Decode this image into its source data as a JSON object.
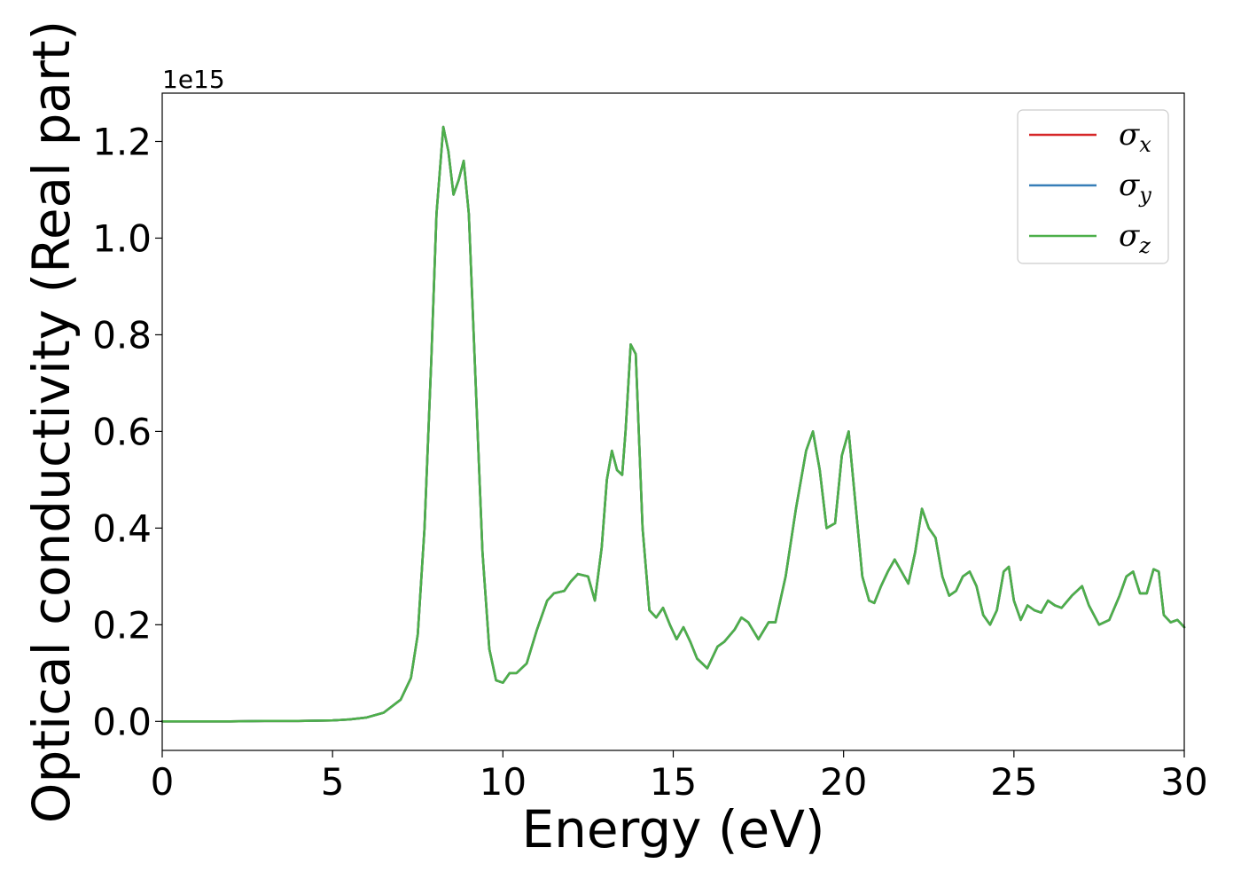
{
  "chart_data": {
    "type": "line",
    "title": "",
    "xlabel": "Energy (eV)",
    "ylabel": "Optical conductivity (Real part)",
    "y_offset_text": "1e15",
    "xlim": [
      0,
      30
    ],
    "ylim": [
      -0.06,
      1.3
    ],
    "xticks": [
      {
        "value": 0,
        "label": "0"
      },
      {
        "value": 5,
        "label": "5"
      },
      {
        "value": 10,
        "label": "10"
      },
      {
        "value": 15,
        "label": "15"
      },
      {
        "value": 20,
        "label": "20"
      },
      {
        "value": 25,
        "label": "25"
      },
      {
        "value": 30,
        "label": "30"
      }
    ],
    "yticks": [
      {
        "value": 0.0,
        "label": "0.0"
      },
      {
        "value": 0.2,
        "label": "0.2"
      },
      {
        "value": 0.4,
        "label": "0.4"
      },
      {
        "value": 0.6,
        "label": "0.6"
      },
      {
        "value": 0.8,
        "label": "0.8"
      },
      {
        "value": 1.0,
        "label": "1.0"
      },
      {
        "value": 1.2,
        "label": "1.2"
      }
    ],
    "grid": false,
    "legend_position": "top-right",
    "x": [
      0,
      1,
      2,
      3,
      4,
      5,
      5.5,
      6,
      6.5,
      7,
      7.3,
      7.5,
      7.7,
      7.9,
      8.05,
      8.25,
      8.4,
      8.55,
      8.7,
      8.85,
      9.0,
      9.2,
      9.4,
      9.6,
      9.8,
      10.0,
      10.2,
      10.4,
      10.7,
      11.0,
      11.3,
      11.5,
      11.8,
      12.0,
      12.2,
      12.5,
      12.7,
      12.9,
      13.05,
      13.2,
      13.35,
      13.5,
      13.6,
      13.75,
      13.9,
      14.1,
      14.3,
      14.5,
      14.7,
      14.9,
      15.1,
      15.3,
      15.5,
      15.7,
      16.0,
      16.3,
      16.5,
      16.8,
      17.0,
      17.2,
      17.5,
      17.8,
      18.0,
      18.3,
      18.6,
      18.9,
      19.1,
      19.3,
      19.5,
      19.75,
      19.95,
      20.15,
      20.35,
      20.55,
      20.75,
      20.9,
      21.1,
      21.3,
      21.5,
      21.7,
      21.9,
      22.1,
      22.3,
      22.5,
      22.7,
      22.9,
      23.1,
      23.3,
      23.5,
      23.7,
      23.9,
      24.1,
      24.3,
      24.5,
      24.7,
      24.85,
      25.0,
      25.2,
      25.4,
      25.6,
      25.8,
      26.0,
      26.2,
      26.4,
      26.7,
      27.0,
      27.2,
      27.5,
      27.8,
      28.1,
      28.3,
      28.5,
      28.7,
      28.9,
      29.1,
      29.25,
      29.4,
      29.6,
      29.8,
      30.0
    ],
    "y": [
      0.0,
      0.0,
      0.0,
      0.001,
      0.001,
      0.002,
      0.004,
      0.008,
      0.018,
      0.045,
      0.09,
      0.18,
      0.4,
      0.75,
      1.05,
      1.23,
      1.18,
      1.09,
      1.12,
      1.16,
      1.05,
      0.7,
      0.35,
      0.15,
      0.085,
      0.08,
      0.1,
      0.1,
      0.12,
      0.19,
      0.25,
      0.265,
      0.27,
      0.29,
      0.305,
      0.3,
      0.25,
      0.36,
      0.5,
      0.56,
      0.52,
      0.51,
      0.6,
      0.78,
      0.76,
      0.4,
      0.23,
      0.215,
      0.235,
      0.2,
      0.17,
      0.195,
      0.165,
      0.13,
      0.11,
      0.155,
      0.165,
      0.19,
      0.215,
      0.205,
      0.17,
      0.205,
      0.205,
      0.3,
      0.44,
      0.56,
      0.6,
      0.52,
      0.4,
      0.41,
      0.55,
      0.6,
      0.45,
      0.3,
      0.25,
      0.245,
      0.28,
      0.31,
      0.335,
      0.31,
      0.285,
      0.35,
      0.44,
      0.4,
      0.38,
      0.3,
      0.26,
      0.27,
      0.3,
      0.31,
      0.28,
      0.22,
      0.2,
      0.23,
      0.31,
      0.32,
      0.25,
      0.21,
      0.24,
      0.23,
      0.225,
      0.25,
      0.24,
      0.235,
      0.26,
      0.28,
      0.24,
      0.2,
      0.21,
      0.26,
      0.3,
      0.31,
      0.265,
      0.265,
      0.315,
      0.31,
      0.22,
      0.205,
      0.21,
      0.195
    ],
    "series": [
      {
        "name": "σx",
        "symbol": "σ",
        "sub": "x",
        "color": "#d62728"
      },
      {
        "name": "σy",
        "symbol": "σ",
        "sub": "y",
        "color": "#377eb8"
      },
      {
        "name": "σz",
        "symbol": "σ",
        "sub": "z",
        "color": "#4daf4a"
      }
    ]
  }
}
